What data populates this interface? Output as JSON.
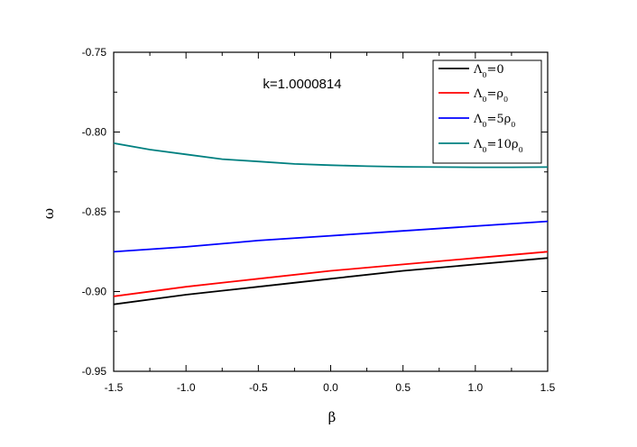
{
  "chart_data": {
    "type": "line",
    "xlabel": "β",
    "ylabel": "ω",
    "xlim": [
      -1.5,
      1.5
    ],
    "ylim": [
      -0.95,
      -0.75
    ],
    "x_ticks": [
      "-1.5",
      "-1.0",
      "-0.5",
      "0.0",
      "0.5",
      "1.0",
      "1.5"
    ],
    "y_ticks": [
      "-0.75",
      "-0.80",
      "-0.85",
      "-0.90",
      "-0.95"
    ],
    "annotation": "k=1.0000814",
    "legend_position": "top-right",
    "series": [
      {
        "name": "Λ0=0",
        "label_parts": {
          "sym": "Λ",
          "sub": "0",
          "rest": "=0",
          "rest_sub": ""
        },
        "color": "#000000",
        "x": [
          -1.5,
          -1.0,
          -0.5,
          0.0,
          0.5,
          1.0,
          1.5
        ],
        "y": [
          -0.908,
          -0.902,
          -0.897,
          -0.892,
          -0.887,
          -0.883,
          -0.879
        ]
      },
      {
        "name": "Λ0=ρ0",
        "label_parts": {
          "sym": "Λ",
          "sub": "0",
          "rest": "=ρ",
          "rest_sub": "0"
        },
        "color": "#ff0000",
        "x": [
          -1.5,
          -1.0,
          -0.5,
          0.0,
          0.5,
          1.0,
          1.5
        ],
        "y": [
          -0.903,
          -0.897,
          -0.892,
          -0.887,
          -0.883,
          -0.879,
          -0.875
        ]
      },
      {
        "name": "Λ0=5ρ0",
        "label_parts": {
          "sym": "Λ",
          "sub": "0",
          "rest": "=5ρ",
          "rest_sub": "0"
        },
        "color": "#0000ff",
        "x": [
          -1.5,
          -1.0,
          -0.5,
          0.0,
          0.5,
          1.0,
          1.5
        ],
        "y": [
          -0.875,
          -0.872,
          -0.868,
          -0.865,
          -0.862,
          -0.859,
          -0.856
        ]
      },
      {
        "name": "Λ0=10ρ0",
        "label_parts": {
          "sym": "Λ",
          "sub": "0",
          "rest": "=10ρ",
          "rest_sub": "0"
        },
        "color": "#008080",
        "x": [
          -1.5,
          -1.25,
          -1.0,
          -0.75,
          -0.5,
          -0.25,
          0.0,
          0.25,
          0.5,
          0.75,
          1.0,
          1.25,
          1.5
        ],
        "y": [
          -0.807,
          -0.811,
          -0.814,
          -0.817,
          -0.8185,
          -0.82,
          -0.8208,
          -0.8214,
          -0.8218,
          -0.822,
          -0.8221,
          -0.8221,
          -0.822
        ]
      }
    ]
  }
}
